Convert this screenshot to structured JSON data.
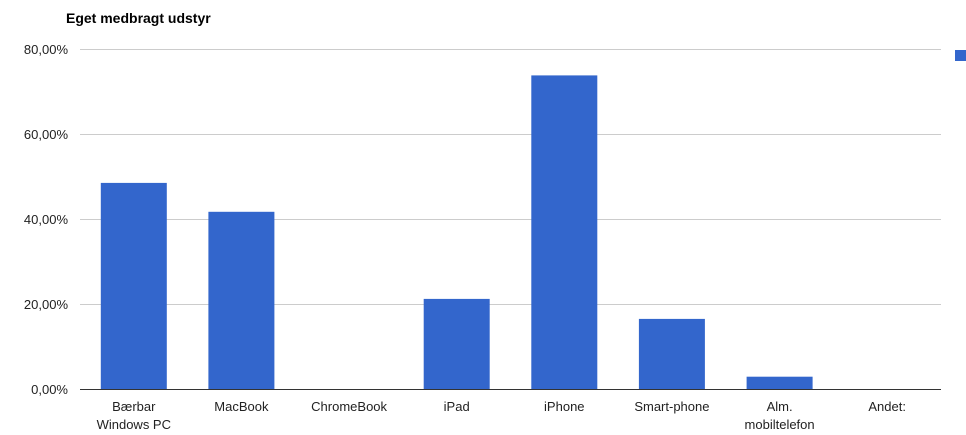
{
  "chart_data": {
    "type": "bar",
    "title": "Eget medbragt udstyr",
    "categories": [
      "Bærbar Windows PC",
      "MacBook",
      "ChromeBook",
      "iPad",
      "iPhone",
      "Smart-phone",
      "Alm. mobiltelefon",
      "Andet:"
    ],
    "category_lines": [
      [
        "Bærbar",
        "Windows PC"
      ],
      [
        "MacBook"
      ],
      [
        "ChromeBook"
      ],
      [
        "iPad"
      ],
      [
        "iPhone"
      ],
      [
        "Smart-phone"
      ],
      [
        "Alm.",
        "mobiltelefon"
      ],
      [
        "Andet:"
      ]
    ],
    "series": [
      {
        "values": [
          48.5,
          41.7,
          0,
          21.2,
          73.8,
          16.5,
          2.9,
          0
        ]
      }
    ],
    "ylim": [
      0,
      80
    ],
    "yticks": [
      0,
      20,
      40,
      60,
      80
    ],
    "ytick_labels": [
      "0,00%",
      "20,00%",
      "40,00%",
      "60,00%",
      "80,00%"
    ],
    "xlabel": "",
    "ylabel": "",
    "grid": true,
    "legend": "top-right",
    "colors": {
      "bar": "#3366cc",
      "grid": "#cccccc",
      "axis": "#333333"
    }
  }
}
